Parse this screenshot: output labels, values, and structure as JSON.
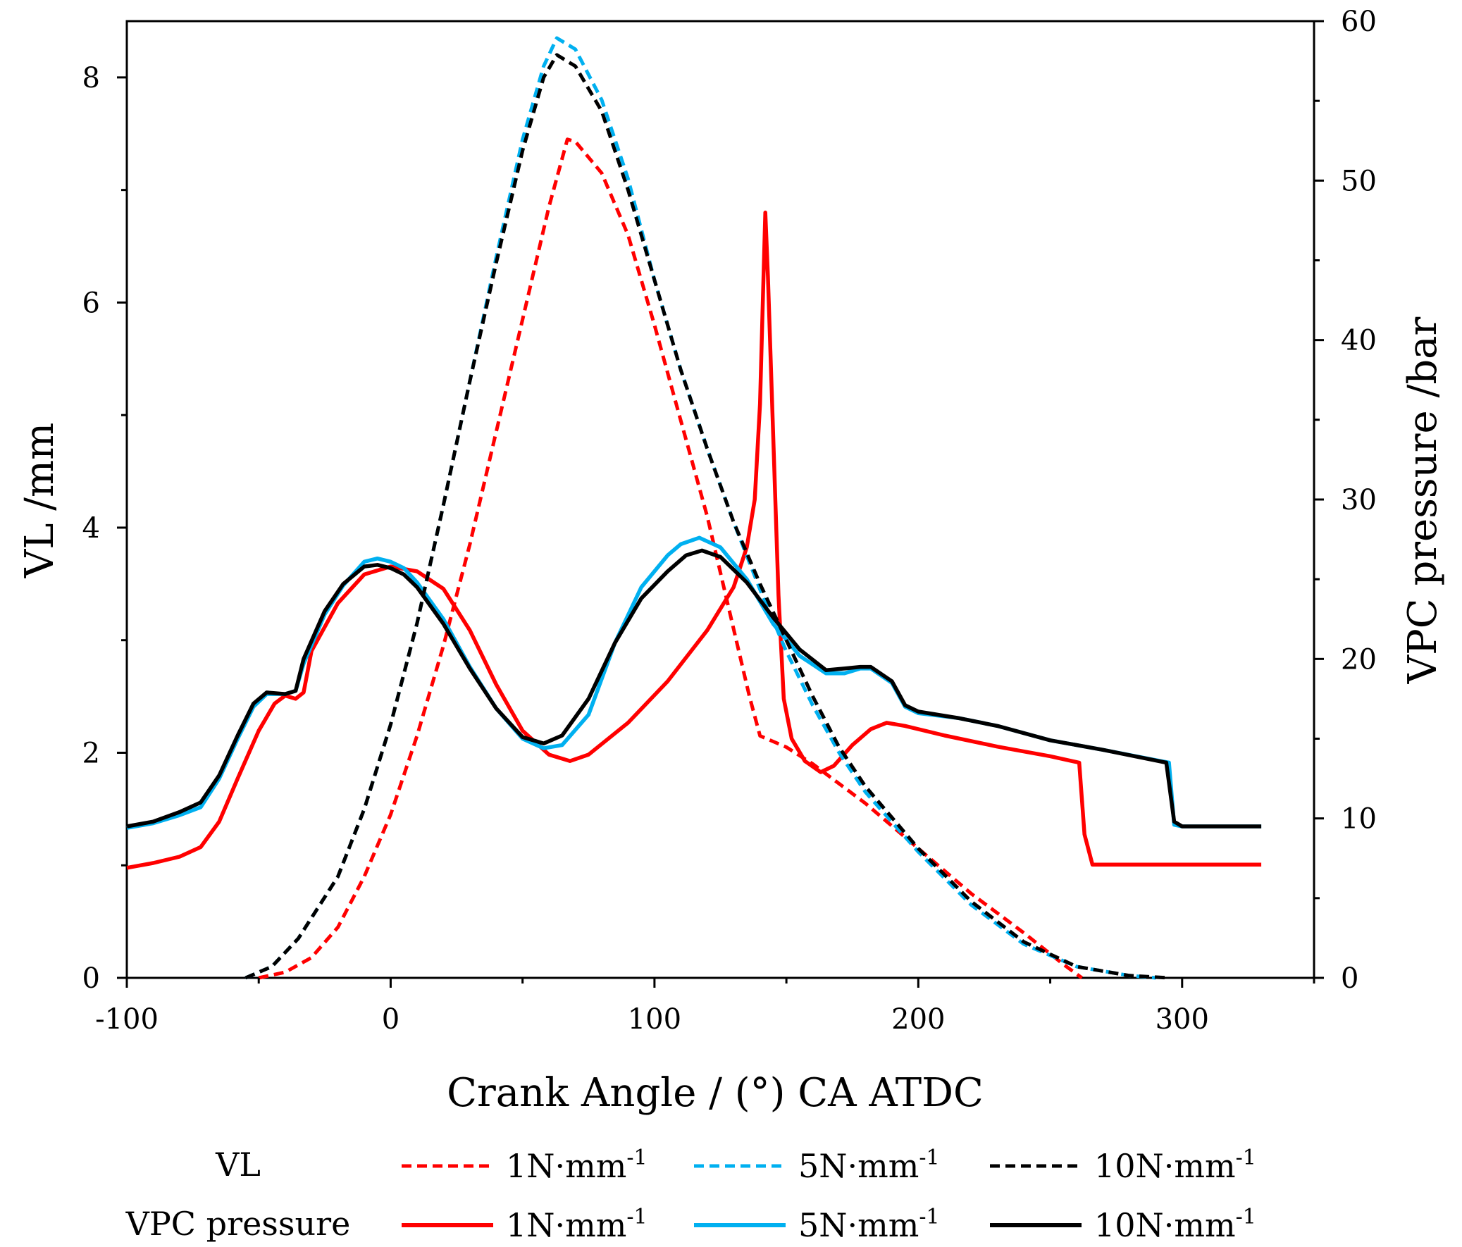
{
  "chart_data": {
    "type": "line",
    "title": "",
    "xlabel": "Crank Angle / (°) CA ATDC",
    "ylabel_left": "VL  /mm",
    "ylabel_right": "VPC pressure  /bar",
    "xlim": [
      -100,
      350
    ],
    "ylim_left": [
      0,
      8.5
    ],
    "ylim_right": [
      0,
      60
    ],
    "x_ticks": [
      -100,
      0,
      100,
      200,
      300
    ],
    "x_tick_labels": [
      "-100",
      "0",
      "100",
      "200",
      "300"
    ],
    "y_left_ticks": [
      0,
      2,
      4,
      6,
      8
    ],
    "y_left_tick_labels": [
      "0",
      "2",
      "4",
      "6",
      "8"
    ],
    "y_right_ticks": [
      0,
      10,
      20,
      30,
      40,
      50,
      60
    ],
    "y_right_tick_labels": [
      "0",
      "10",
      "20",
      "30",
      "40",
      "50",
      "60"
    ],
    "grid": false,
    "legend": {
      "placement": "bottom",
      "row_labels": [
        "VL",
        "VPC pressure"
      ],
      "entry_unit": "N·mm",
      "entry_sup": "-1",
      "entry_values": [
        "1",
        "5",
        "10"
      ]
    },
    "series": [
      {
        "name": "VL 1N·mm-1",
        "group": "VL",
        "axis": "left",
        "style": "dashed",
        "color": "#ff0000",
        "points": [
          [
            -50,
            0
          ],
          [
            -40,
            0.05
          ],
          [
            -30,
            0.18
          ],
          [
            -20,
            0.45
          ],
          [
            -10,
            0.9
          ],
          [
            0,
            1.45
          ],
          [
            10,
            2.15
          ],
          [
            20,
            2.95
          ],
          [
            30,
            3.85
          ],
          [
            40,
            4.85
          ],
          [
            50,
            5.85
          ],
          [
            60,
            6.85
          ],
          [
            67,
            7.45
          ],
          [
            70,
            7.43
          ],
          [
            80,
            7.15
          ],
          [
            90,
            6.6
          ],
          [
            100,
            5.8
          ],
          [
            110,
            4.95
          ],
          [
            120,
            4.1
          ],
          [
            130,
            3.1
          ],
          [
            136,
            2.5
          ],
          [
            140,
            2.15
          ],
          [
            150,
            2.05
          ],
          [
            160,
            1.9
          ],
          [
            180,
            1.55
          ],
          [
            200,
            1.15
          ],
          [
            220,
            0.75
          ],
          [
            240,
            0.4
          ],
          [
            255,
            0.12
          ],
          [
            262,
            0
          ]
        ]
      },
      {
        "name": "VL 5N·mm-1",
        "group": "VL",
        "axis": "left",
        "style": "dashed",
        "color": "#00b0f0",
        "points": [
          [
            -55,
            0
          ],
          [
            -45,
            0.1
          ],
          [
            -35,
            0.35
          ],
          [
            -20,
            0.9
          ],
          [
            -10,
            1.5
          ],
          [
            0,
            2.25
          ],
          [
            10,
            3.15
          ],
          [
            20,
            4.2
          ],
          [
            30,
            5.3
          ],
          [
            40,
            6.4
          ],
          [
            50,
            7.45
          ],
          [
            58,
            8.1
          ],
          [
            63,
            8.35
          ],
          [
            70,
            8.25
          ],
          [
            80,
            7.8
          ],
          [
            90,
            7.1
          ],
          [
            100,
            6.2
          ],
          [
            110,
            5.4
          ],
          [
            120,
            4.7
          ],
          [
            130,
            4.05
          ],
          [
            140,
            3.45
          ],
          [
            150,
            2.9
          ],
          [
            160,
            2.42
          ],
          [
            170,
            2.0
          ],
          [
            180,
            1.65
          ],
          [
            200,
            1.12
          ],
          [
            220,
            0.65
          ],
          [
            240,
            0.3
          ],
          [
            260,
            0.1
          ],
          [
            280,
            0.02
          ],
          [
            290,
            0
          ]
        ]
      },
      {
        "name": "VL 10N·mm-1",
        "group": "VL",
        "axis": "left",
        "style": "dashed",
        "color": "#000000",
        "points": [
          [
            -55,
            0
          ],
          [
            -45,
            0.1
          ],
          [
            -35,
            0.35
          ],
          [
            -20,
            0.9
          ],
          [
            -10,
            1.5
          ],
          [
            0,
            2.25
          ],
          [
            10,
            3.15
          ],
          [
            20,
            4.2
          ],
          [
            30,
            5.3
          ],
          [
            40,
            6.35
          ],
          [
            50,
            7.35
          ],
          [
            58,
            8.0
          ],
          [
            63,
            8.2
          ],
          [
            70,
            8.1
          ],
          [
            80,
            7.7
          ],
          [
            90,
            7.0
          ],
          [
            100,
            6.2
          ],
          [
            110,
            5.4
          ],
          [
            120,
            4.7
          ],
          [
            130,
            4.05
          ],
          [
            140,
            3.5
          ],
          [
            150,
            3.0
          ],
          [
            160,
            2.5
          ],
          [
            170,
            2.05
          ],
          [
            180,
            1.7
          ],
          [
            200,
            1.15
          ],
          [
            220,
            0.68
          ],
          [
            240,
            0.32
          ],
          [
            260,
            0.1
          ],
          [
            280,
            0.02
          ],
          [
            295,
            0
          ]
        ]
      },
      {
        "name": "VPC pressure 1N·mm-1",
        "group": "VPC pressure",
        "axis": "right",
        "style": "solid",
        "color": "#ff0000",
        "points": [
          [
            -100,
            6.9
          ],
          [
            -90,
            7.2
          ],
          [
            -80,
            7.6
          ],
          [
            -72,
            8.2
          ],
          [
            -65,
            9.8
          ],
          [
            -58,
            12.5
          ],
          [
            -50,
            15.5
          ],
          [
            -44,
            17.2
          ],
          [
            -40,
            17.7
          ],
          [
            -36,
            17.5
          ],
          [
            -33,
            17.9
          ],
          [
            -30,
            20.5
          ],
          [
            -25,
            22.0
          ],
          [
            -20,
            23.5
          ],
          [
            -10,
            25.3
          ],
          [
            0,
            25.8
          ],
          [
            10,
            25.5
          ],
          [
            20,
            24.4
          ],
          [
            30,
            21.8
          ],
          [
            40,
            18.4
          ],
          [
            50,
            15.5
          ],
          [
            60,
            14.0
          ],
          [
            68,
            13.6
          ],
          [
            75,
            14.0
          ],
          [
            90,
            16.0
          ],
          [
            105,
            18.6
          ],
          [
            120,
            21.8
          ],
          [
            130,
            24.5
          ],
          [
            135,
            27.0
          ],
          [
            138,
            30.0
          ],
          [
            140,
            36.0
          ],
          [
            141,
            42.0
          ],
          [
            142,
            48.0
          ],
          [
            143,
            44.0
          ],
          [
            145,
            34.0
          ],
          [
            147,
            24.0
          ],
          [
            149,
            17.5
          ],
          [
            152,
            15.0
          ],
          [
            157,
            13.6
          ],
          [
            163,
            12.9
          ],
          [
            168,
            13.3
          ],
          [
            175,
            14.6
          ],
          [
            182,
            15.6
          ],
          [
            188,
            16.0
          ],
          [
            195,
            15.8
          ],
          [
            210,
            15.2
          ],
          [
            230,
            14.5
          ],
          [
            250,
            13.9
          ],
          [
            261,
            13.5
          ],
          [
            263,
            9.0
          ],
          [
            266,
            7.1
          ],
          [
            330,
            7.1
          ]
        ]
      },
      {
        "name": "VPC pressure 5N·mm-1",
        "group": "VPC pressure",
        "axis": "right",
        "style": "solid",
        "color": "#00b0f0",
        "points": [
          [
            -100,
            9.4
          ],
          [
            -90,
            9.7
          ],
          [
            -80,
            10.2
          ],
          [
            -72,
            10.7
          ],
          [
            -65,
            12.5
          ],
          [
            -58,
            15.0
          ],
          [
            -52,
            17.0
          ],
          [
            -47,
            17.8
          ],
          [
            -40,
            17.8
          ],
          [
            -36,
            18.0
          ],
          [
            -33,
            19.7
          ],
          [
            -25,
            22.8
          ],
          [
            -18,
            24.6
          ],
          [
            -10,
            26.1
          ],
          [
            -5,
            26.3
          ],
          [
            0,
            26.1
          ],
          [
            5,
            25.7
          ],
          [
            10,
            24.8
          ],
          [
            20,
            22.5
          ],
          [
            30,
            19.5
          ],
          [
            40,
            16.9
          ],
          [
            50,
            15.0
          ],
          [
            58,
            14.4
          ],
          [
            65,
            14.6
          ],
          [
            75,
            16.5
          ],
          [
            85,
            21.0
          ],
          [
            95,
            24.5
          ],
          [
            105,
            26.5
          ],
          [
            110,
            27.2
          ],
          [
            117,
            27.6
          ],
          [
            125,
            27.0
          ],
          [
            135,
            25.0
          ],
          [
            145,
            22.2
          ],
          [
            155,
            20.2
          ],
          [
            165,
            19.1
          ],
          [
            172,
            19.1
          ],
          [
            178,
            19.4
          ],
          [
            182,
            19.4
          ],
          [
            190,
            18.5
          ],
          [
            195,
            17.0
          ],
          [
            200,
            16.6
          ],
          [
            215,
            16.3
          ],
          [
            230,
            15.8
          ],
          [
            250,
            14.9
          ],
          [
            270,
            14.3
          ],
          [
            295,
            13.5
          ],
          [
            297,
            9.6
          ],
          [
            300,
            9.5
          ],
          [
            330,
            9.5
          ]
        ]
      },
      {
        "name": "VPC pressure 10N·mm-1",
        "group": "VPC pressure",
        "axis": "right",
        "style": "solid",
        "color": "#000000",
        "points": [
          [
            -100,
            9.5
          ],
          [
            -90,
            9.8
          ],
          [
            -80,
            10.4
          ],
          [
            -72,
            11.0
          ],
          [
            -65,
            12.7
          ],
          [
            -58,
            15.2
          ],
          [
            -52,
            17.2
          ],
          [
            -47,
            17.9
          ],
          [
            -40,
            17.8
          ],
          [
            -36,
            18.0
          ],
          [
            -33,
            20.0
          ],
          [
            -25,
            23.0
          ],
          [
            -18,
            24.7
          ],
          [
            -10,
            25.8
          ],
          [
            -5,
            25.9
          ],
          [
            0,
            25.7
          ],
          [
            5,
            25.3
          ],
          [
            10,
            24.5
          ],
          [
            20,
            22.2
          ],
          [
            30,
            19.4
          ],
          [
            40,
            16.9
          ],
          [
            50,
            15.1
          ],
          [
            58,
            14.7
          ],
          [
            65,
            15.2
          ],
          [
            75,
            17.5
          ],
          [
            85,
            21.0
          ],
          [
            95,
            23.8
          ],
          [
            105,
            25.5
          ],
          [
            112,
            26.5
          ],
          [
            118,
            26.8
          ],
          [
            125,
            26.4
          ],
          [
            135,
            24.8
          ],
          [
            145,
            22.6
          ],
          [
            155,
            20.6
          ],
          [
            165,
            19.3
          ],
          [
            172,
            19.4
          ],
          [
            178,
            19.5
          ],
          [
            182,
            19.5
          ],
          [
            190,
            18.6
          ],
          [
            195,
            17.1
          ],
          [
            200,
            16.7
          ],
          [
            215,
            16.3
          ],
          [
            230,
            15.8
          ],
          [
            250,
            14.9
          ],
          [
            270,
            14.3
          ],
          [
            294,
            13.5
          ],
          [
            297,
            9.8
          ],
          [
            300,
            9.5
          ],
          [
            330,
            9.5
          ]
        ]
      }
    ]
  }
}
